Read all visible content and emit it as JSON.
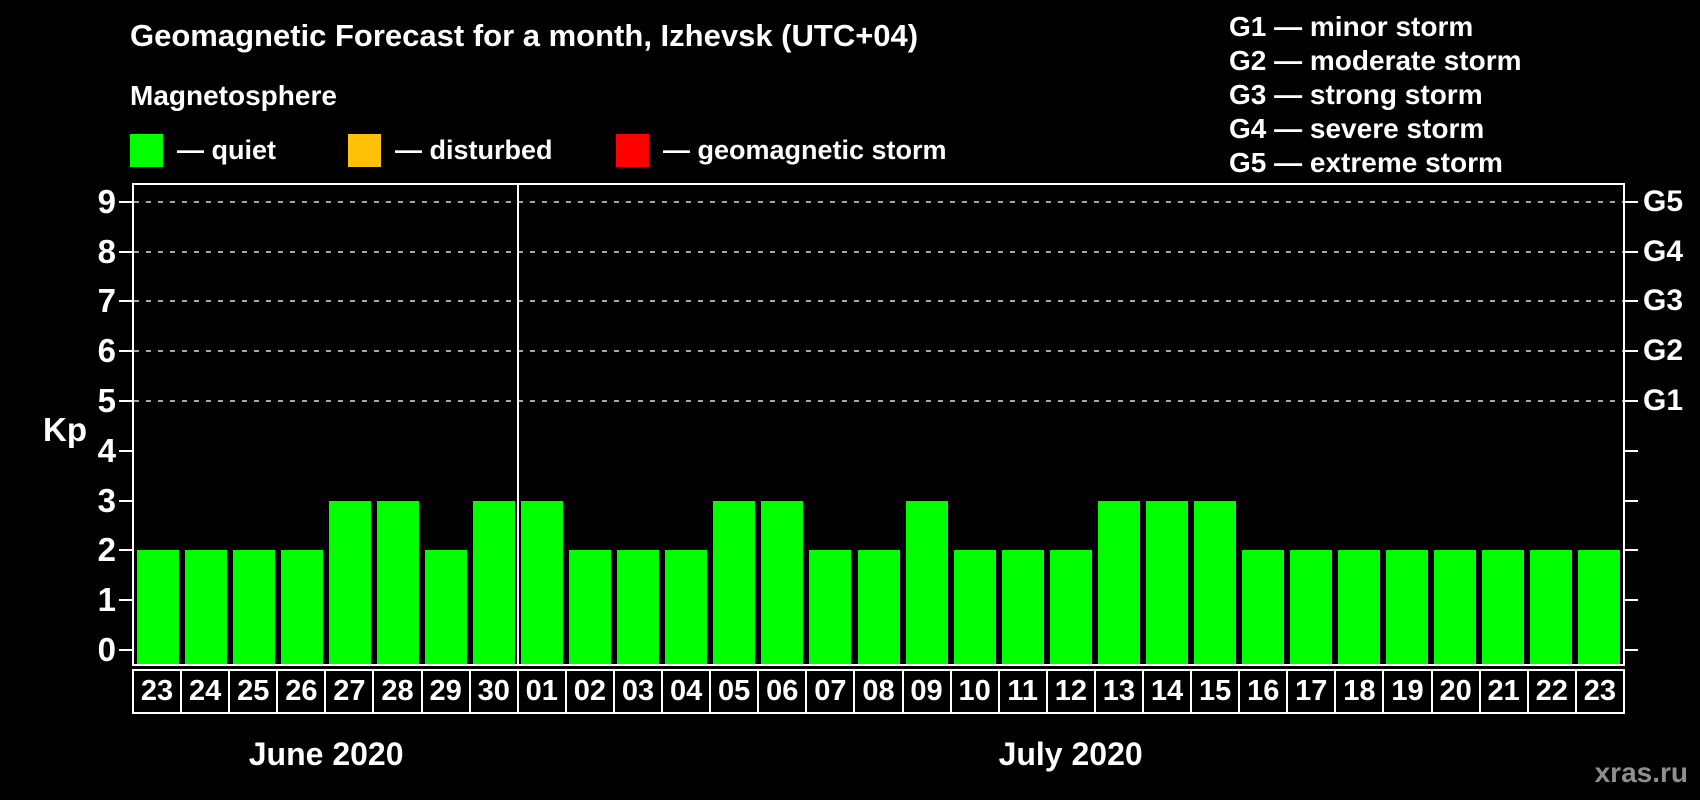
{
  "title": "Geomagnetic Forecast for a month, Izhevsk (UTC+04)",
  "subtitle": "Magnetosphere",
  "condition_legend": [
    {
      "label": "— quiet",
      "color": "#00ff00"
    },
    {
      "label": "— disturbed",
      "color": "#ffc107"
    },
    {
      "label": "— geomagnetic storm",
      "color": "#ff0000"
    }
  ],
  "storm_scale_legend": [
    "G1 — minor storm",
    "G2 — moderate storm",
    "G3 — strong storm",
    "G4 — severe storm",
    "G5 — extreme storm"
  ],
  "watermark": "xras.ru",
  "chart_data": {
    "type": "bar",
    "title": "Geomagnetic Forecast for a month, Izhevsk (UTC+04)",
    "ylabel": "Kp",
    "ylim": [
      0,
      9
    ],
    "y_ticks": [
      0,
      1,
      2,
      3,
      4,
      5,
      6,
      7,
      8,
      9
    ],
    "grid": "dashed horizontal lines at Kp 5,6,7,8,9 only",
    "bar_color": "#00ff00",
    "categories": [
      "23",
      "24",
      "25",
      "26",
      "27",
      "28",
      "29",
      "30",
      "01",
      "02",
      "03",
      "04",
      "05",
      "06",
      "07",
      "08",
      "09",
      "10",
      "11",
      "12",
      "13",
      "14",
      "15",
      "16",
      "17",
      "18",
      "19",
      "20",
      "21",
      "22",
      "23"
    ],
    "values": [
      2,
      2,
      2,
      2,
      3,
      3,
      2,
      3,
      3,
      2,
      2,
      2,
      3,
      3,
      2,
      2,
      3,
      2,
      2,
      2,
      3,
      3,
      3,
      2,
      2,
      2,
      2,
      2,
      2,
      2,
      2
    ],
    "months": [
      {
        "label": "June 2020",
        "day_count": 8
      },
      {
        "label": "July 2020",
        "day_count": 23
      }
    ],
    "right_axis_labels": [
      {
        "text": "G1",
        "kp": 5
      },
      {
        "text": "G2",
        "kp": 6
      },
      {
        "text": "G3",
        "kp": 7
      },
      {
        "text": "G4",
        "kp": 8
      },
      {
        "text": "G5",
        "kp": 9
      }
    ]
  }
}
